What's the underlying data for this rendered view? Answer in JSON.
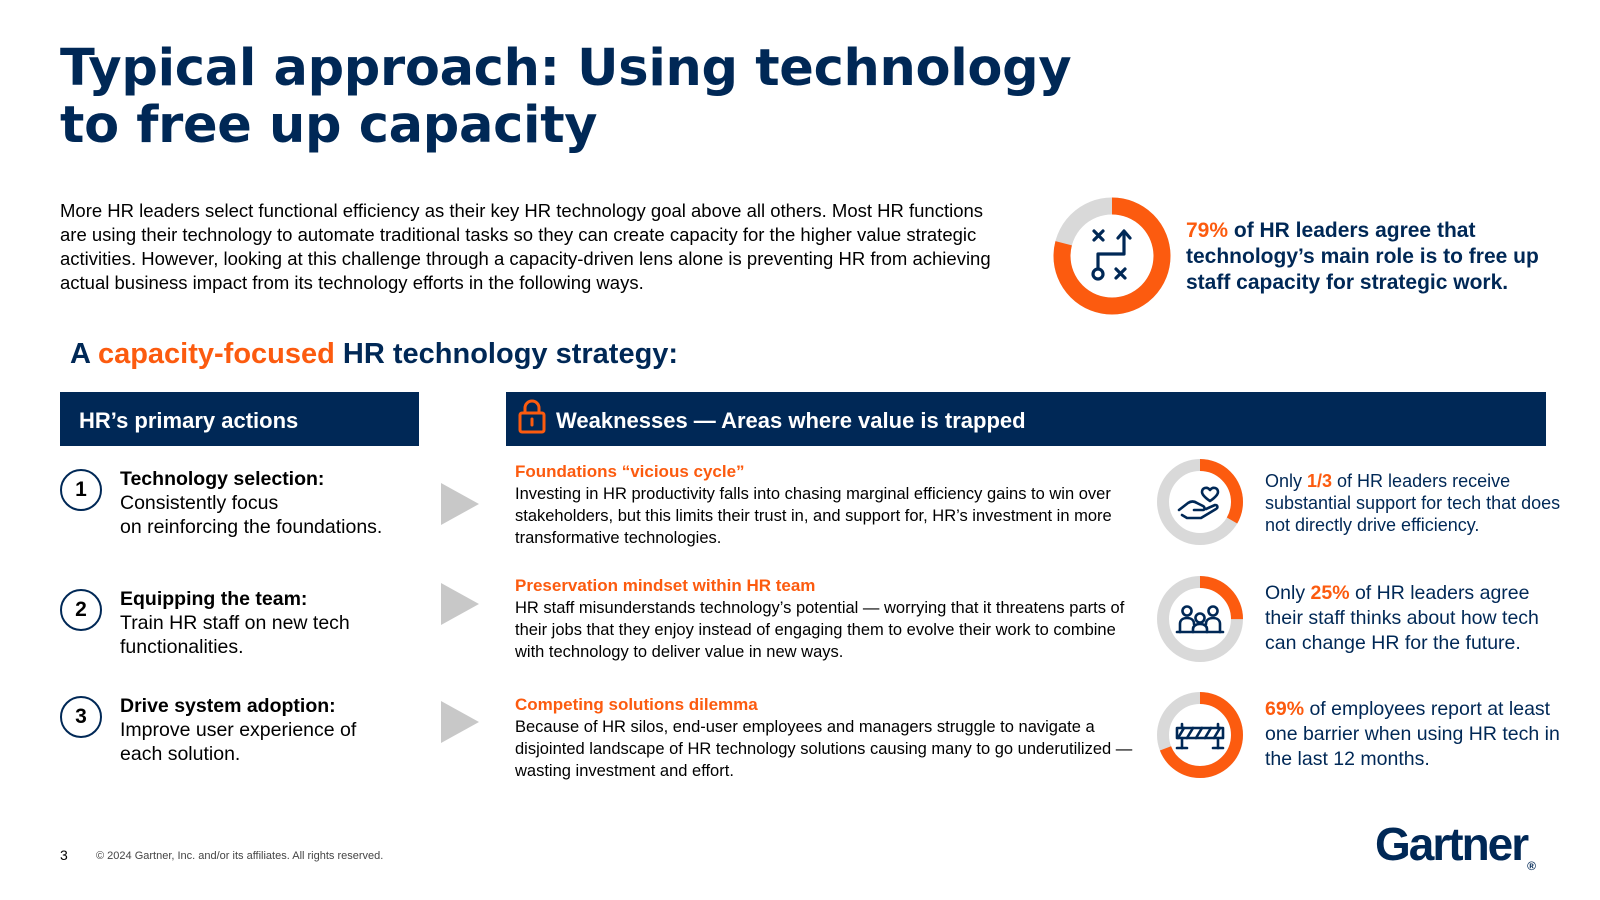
{
  "title": {
    "line1": "Typical approach: Using technology",
    "line2": "to free up capacity"
  },
  "intro": "More HR leaders select functional efficiency as their key HR technology goal above all others. Most HR functions are using their technology to automate traditional tasks so they can create capacity for the higher value strategic activities. However, looking at this challenge through a capacity-driven lens alone is preventing HR from achieving actual business impact from its technology efforts in the following ways.",
  "main_stat": {
    "value": "79%",
    "text": " of HR leaders agree that technology’s main role is to free up staff capacity for strategic work.",
    "fraction": 0.79,
    "icon": "strategy-play-icon"
  },
  "strategy_heading": {
    "prefix": "A ",
    "highlight": "capacity-focused",
    "suffix": " HR technology strategy:"
  },
  "actions_header": "HR’s primary actions",
  "weaknesses_header": "Weaknesses — Areas where value is trapped",
  "actions": [
    {
      "number": "1",
      "title": "Technology selection:",
      "line1": "Consistently focus",
      "line2": "on reinforcing the foundations."
    },
    {
      "number": "2",
      "title": "Equipping the team:",
      "line1": "Train HR staff on new tech",
      "line2": "functionalities."
    },
    {
      "number": "3",
      "title": "Drive system adoption:",
      "line1": "Improve user experience of",
      "line2": "each solution."
    }
  ],
  "weaknesses": [
    {
      "title": "Foundations “vicious cycle”",
      "body": "Investing in HR productivity falls into chasing marginal efficiency gains to win over stakeholders, but this limits their trust in, and support for, HR’s investment in more transformative technologies."
    },
    {
      "title": "Preservation mindset within HR team",
      "body": "HR staff misunderstands technology’s potential — worrying that it threatens parts of their jobs that they enjoy instead of engaging them to evolve their work to combine with technology to deliver value in new ways."
    },
    {
      "title": "Competing solutions dilemma",
      "body": "Because of HR silos, end-user employees and managers struggle to navigate a disjointed landscape of HR technology solutions causing many to go underutilized — wasting investment and effort."
    }
  ],
  "stats": [
    {
      "prefix": "Only ",
      "value": "1/3",
      "text": " of HR leaders receive substantial support for tech that does not directly drive efficiency.",
      "fraction": 0.333,
      "icon": "heart-hand-icon"
    },
    {
      "prefix": "Only ",
      "value": "25%",
      "text": " of HR leaders agree their staff thinks about how tech can change HR for the future.",
      "fraction": 0.25,
      "icon": "team-people-icon"
    },
    {
      "prefix": "",
      "value": "69%",
      "text": " of employees report at least one barrier when using HR tech in the last 12 months.",
      "fraction": 0.69,
      "icon": "barrier-icon"
    }
  ],
  "colors": {
    "navy": "#002856",
    "orange": "#fc5b0f",
    "track": "#d9d9d9",
    "arrow": "#c8c8c8"
  },
  "footer": {
    "page_number": "3",
    "copyright": "© 2024 Gartner, Inc. and/or its affiliates. All rights reserved.",
    "logo": "Gartner",
    "logo_mark": "®"
  }
}
